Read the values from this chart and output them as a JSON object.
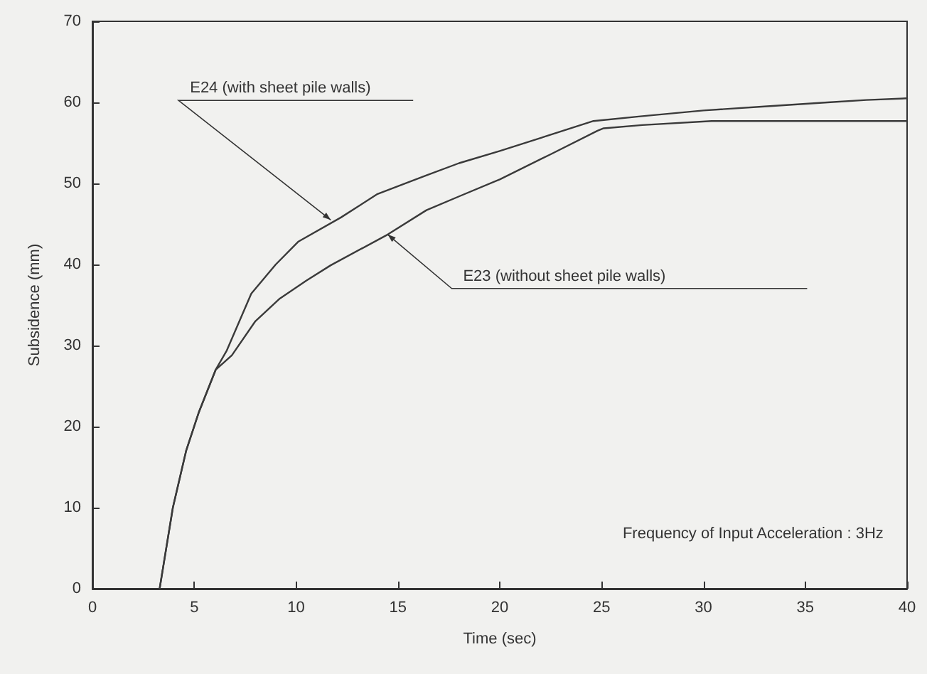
{
  "chart_data": {
    "type": "line",
    "xlabel": "Time (sec)",
    "ylabel": "Subsidence (mm)",
    "xlim": [
      0,
      40
    ],
    "ylim": [
      0,
      70
    ],
    "xticks": [
      0,
      5,
      10,
      15,
      20,
      25,
      30,
      35,
      40
    ],
    "yticks": [
      0,
      10,
      20,
      30,
      40,
      50,
      60,
      70
    ],
    "grid": false,
    "marker": "none",
    "line_style": "solid",
    "series": [
      {
        "color": "#3a3a3a",
        "x": [
          3.3,
          3.95,
          4.6,
          5.23,
          6.05,
          6.6,
          7.8,
          9,
          10.1,
          12.2,
          14,
          16.4,
          18,
          20,
          22,
          24.6,
          27,
          30,
          33,
          36.1,
          38,
          40
        ],
        "values": [
          0,
          10,
          17,
          21.8,
          27,
          29.4,
          36.4,
          40,
          42.8,
          45.8,
          48.7,
          51,
          52.5,
          54,
          55.6,
          57.7,
          58.3,
          59,
          59.5,
          60,
          60.3,
          60.5
        ]
      },
      {
        "color": "#3a3a3a",
        "x": [
          3.3,
          3.95,
          4.6,
          5.23,
          6.05,
          6.85,
          8,
          9.2,
          10.5,
          11.7,
          14.5,
          16.4,
          18,
          20,
          22.5,
          24.8,
          25.1,
          27,
          30.4,
          35,
          40
        ],
        "values": [
          0,
          10,
          17,
          21.8,
          27,
          28.8,
          33,
          35.8,
          38,
          39.9,
          43.7,
          46.7,
          48.4,
          50.5,
          53.6,
          56.5,
          56.8,
          57.2,
          57.7,
          57.7,
          57.7
        ]
      }
    ],
    "annotations": [
      {
        "text": "E24 (with sheet pile walls)",
        "x": 11.7,
        "y": 45.5
      },
      {
        "text": "E23 (without sheet pile walls)",
        "x": 14.5,
        "y": 43.7
      },
      "Frequency of Input Acceleration : 3Hz"
    ]
  }
}
